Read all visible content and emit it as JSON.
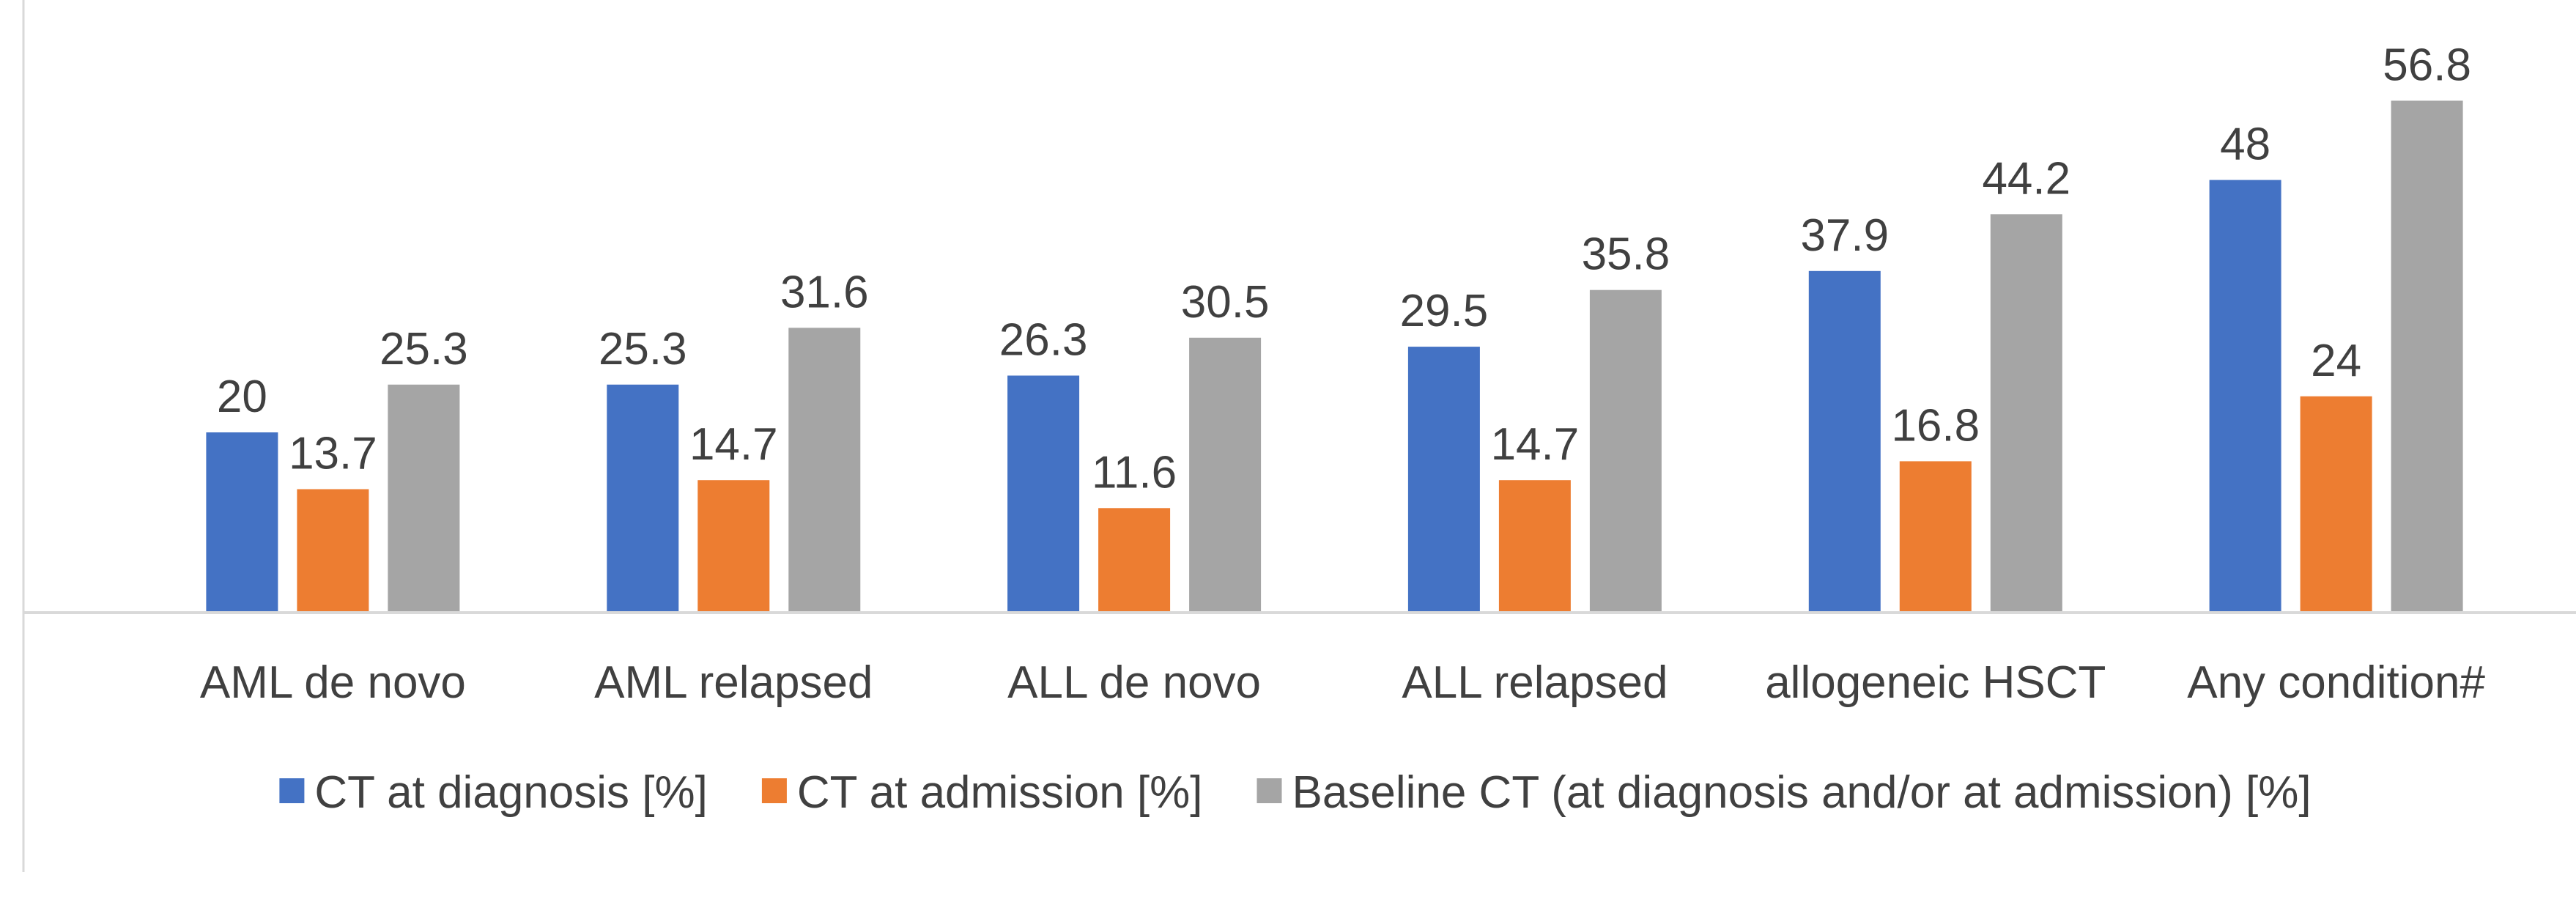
{
  "chart_data": {
    "type": "bar",
    "title": "",
    "xlabel": "",
    "ylabel": "",
    "ylim": [
      0,
      60
    ],
    "grid": false,
    "legend_position": "bottom",
    "categories": [
      "AML de novo",
      "AML relapsed",
      "ALL de novo",
      "ALL relapsed",
      "allogeneic HSCT",
      "Any condition#"
    ],
    "series": [
      {
        "name": "CT at diagnosis [%]",
        "color": "#4472C4",
        "values": [
          20,
          25.3,
          26.3,
          29.5,
          37.9,
          48
        ]
      },
      {
        "name": "CT at admission [%]",
        "color": "#ED7D31",
        "values": [
          13.7,
          14.7,
          11.6,
          14.7,
          16.8,
          24
        ]
      },
      {
        "name": "Baseline CT (at diagnosis and/or at admission) [%]",
        "color": "#A5A5A5",
        "values": [
          25.3,
          31.6,
          30.5,
          35.8,
          44.2,
          56.8
        ]
      }
    ]
  }
}
